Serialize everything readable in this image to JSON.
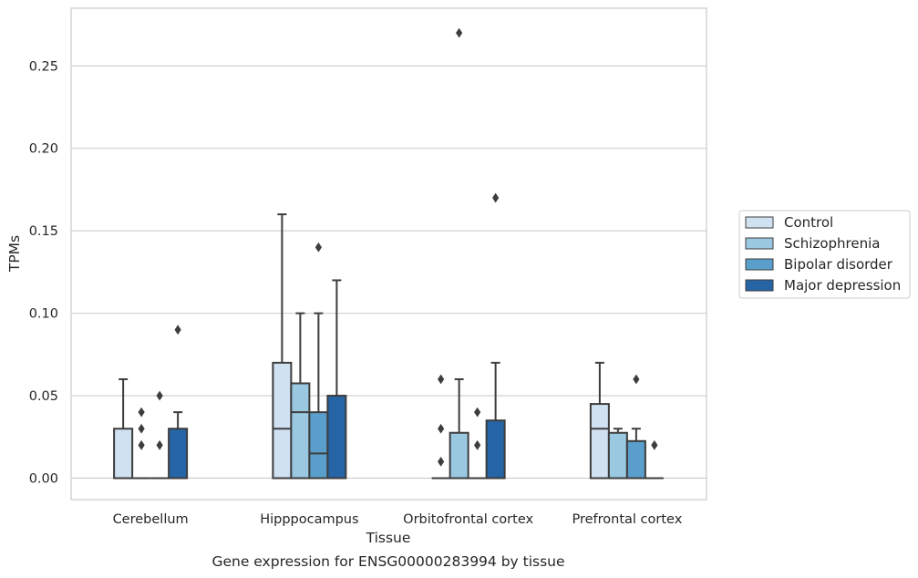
{
  "chart_data": {
    "type": "box",
    "title": "",
    "caption": "Gene expression for ENSG00000283994 by tissue",
    "xlabel": "Tissue",
    "ylabel": "TPMs",
    "ylim": [
      -0.013,
      0.285
    ],
    "yticks": [
      0.0,
      0.05,
      0.1,
      0.15,
      0.2,
      0.25
    ],
    "ytick_labels": [
      "0.00",
      "0.05",
      "0.10",
      "0.15",
      "0.20",
      "0.25"
    ],
    "grid": "horizontal",
    "legend_position": "right",
    "categories": [
      "Cerebellum",
      "Hipppocampus",
      "Orbitofrontal cortex",
      "Prefrontal cortex"
    ],
    "series": [
      {
        "name": "Control",
        "color": "#d0e1f2",
        "boxes": [
          {
            "q1": 0.0,
            "median": 0.0,
            "q3": 0.03,
            "whisker_low": 0.0,
            "whisker_high": 0.06,
            "outliers": []
          },
          {
            "q1": 0.0,
            "median": 0.03,
            "q3": 0.07,
            "whisker_low": 0.0,
            "whisker_high": 0.16,
            "outliers": []
          },
          {
            "q1": 0.0,
            "median": 0.0,
            "q3": 0.0,
            "whisker_low": 0.0,
            "whisker_high": 0.0,
            "outliers": [
              0.01,
              0.03,
              0.06
            ]
          },
          {
            "q1": 0.0,
            "median": 0.03,
            "q3": 0.045,
            "whisker_low": 0.0,
            "whisker_high": 0.07,
            "outliers": []
          }
        ]
      },
      {
        "name": "Schizophrenia",
        "color": "#9ac8e0",
        "boxes": [
          {
            "q1": 0.0,
            "median": 0.0,
            "q3": 0.0,
            "whisker_low": 0.0,
            "whisker_high": 0.0,
            "outliers": [
              0.02,
              0.03,
              0.04
            ]
          },
          {
            "q1": 0.0,
            "median": 0.04,
            "q3": 0.0575,
            "whisker_low": 0.0,
            "whisker_high": 0.1,
            "outliers": []
          },
          {
            "q1": 0.0,
            "median": 0.0,
            "q3": 0.0275,
            "whisker_low": 0.0,
            "whisker_high": 0.06,
            "outliers": [
              0.27
            ]
          },
          {
            "q1": 0.0,
            "median": 0.0,
            "q3": 0.0275,
            "whisker_low": 0.0,
            "whisker_high": 0.03,
            "outliers": []
          }
        ]
      },
      {
        "name": "Bipolar disorder",
        "color": "#5a9fcc",
        "boxes": [
          {
            "q1": 0.0,
            "median": 0.0,
            "q3": 0.0,
            "whisker_low": 0.0,
            "whisker_high": 0.0,
            "outliers": [
              0.02,
              0.05
            ]
          },
          {
            "q1": 0.0,
            "median": 0.015,
            "q3": 0.04,
            "whisker_low": 0.0,
            "whisker_high": 0.1,
            "outliers": [
              0.14
            ]
          },
          {
            "q1": 0.0,
            "median": 0.0,
            "q3": 0.0,
            "whisker_low": 0.0,
            "whisker_high": 0.0,
            "outliers": [
              0.02,
              0.04
            ]
          },
          {
            "q1": 0.0,
            "median": 0.0,
            "q3": 0.0225,
            "whisker_low": 0.0,
            "whisker_high": 0.03,
            "outliers": [
              0.06
            ]
          }
        ]
      },
      {
        "name": "Major depression",
        "color": "#2565a6",
        "boxes": [
          {
            "q1": 0.0,
            "median": 0.0,
            "q3": 0.03,
            "whisker_low": 0.0,
            "whisker_high": 0.04,
            "outliers": [
              0.09
            ]
          },
          {
            "q1": 0.0,
            "median": 0.0,
            "q3": 0.05,
            "whisker_low": 0.0,
            "whisker_high": 0.12,
            "outliers": []
          },
          {
            "q1": 0.0,
            "median": 0.0,
            "q3": 0.035,
            "whisker_low": 0.0,
            "whisker_high": 0.07,
            "outliers": [
              0.17
            ]
          },
          {
            "q1": 0.0,
            "median": 0.0,
            "q3": 0.0,
            "whisker_low": 0.0,
            "whisker_high": 0.0,
            "outliers": [
              0.02
            ]
          }
        ]
      }
    ]
  }
}
